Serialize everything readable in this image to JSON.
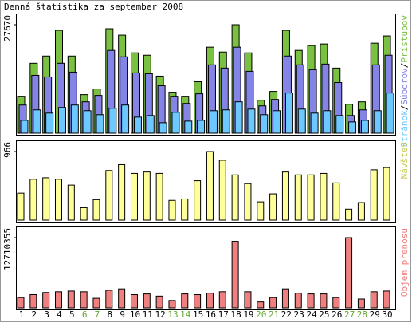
{
  "chart_data": [
    {
      "type": "bar",
      "title": "Denná štatistika za september 2008",
      "ylim": [
        0,
        27670
      ],
      "yticks": [
        27670
      ],
      "legend_separator": "/",
      "series": [
        {
          "name": "Prístupov",
          "color": "#7ac142",
          "values": [
            9430,
            17840,
            19680,
            26240,
            19680,
            9840,
            11280,
            26650,
            25010,
            20500,
            19890,
            14560,
            10460,
            9430,
            13120,
            21940,
            20710,
            27670,
            20500,
            8410,
            10660,
            26240,
            21120,
            22350,
            22760,
            16610,
            7380,
            8000,
            22960,
            24810
          ]
        },
        {
          "name": "Súborov",
          "color": "#8484e6",
          "values": [
            7180,
            14760,
            14350,
            17840,
            15580,
            8000,
            9640,
            21120,
            19480,
            15380,
            15170,
            12100,
            9430,
            7590,
            10050,
            17430,
            16610,
            21940,
            15790,
            6970,
            8610,
            19680,
            17430,
            16200,
            17630,
            12920,
            4510,
            5950,
            17430,
            19890
          ]
        },
        {
          "name": "Stránok",
          "color": "#6cc8ff",
          "values": [
            3280,
            5950,
            5130,
            6560,
            7180,
            5740,
            4720,
            6360,
            7180,
            4100,
            4510,
            2670,
            5330,
            3080,
            3280,
            5740,
            5950,
            8000,
            6150,
            4720,
            5740,
            10250,
            6150,
            5130,
            5740,
            4510,
            2870,
            3280,
            5740,
            10250
          ]
        }
      ]
    },
    {
      "type": "bar",
      "ylim": [
        0,
        966
      ],
      "yticks": [
        966
      ],
      "series": [
        {
          "name": "Návštev",
          "color": "#ffff99",
          "values": [
            380,
            575,
            596,
            575,
            493,
            175,
            288,
            699,
            781,
            658,
            678,
            658,
            278,
            298,
            555,
            966,
            843,
            637,
            514,
            257,
            370,
            678,
            637,
            637,
            658,
            524,
            154,
            247,
            709,
            740
          ]
        }
      ]
    },
    {
      "type": "bar",
      "ylim": [
        0,
        12710355
      ],
      "yticks": [
        12710355
      ],
      "categories": [
        "1",
        "2",
        "3",
        "4",
        "5",
        "6",
        "7",
        "8",
        "9",
        "10",
        "11",
        "12",
        "13",
        "14",
        "15",
        "16",
        "17",
        "18",
        "19",
        "20",
        "21",
        "22",
        "23",
        "24",
        "25",
        "26",
        "27",
        "28",
        "29",
        "30"
      ],
      "category_colors": [
        "#000000",
        "#000000",
        "#000000",
        "#000000",
        "#000000",
        "#66a832",
        "#66a832",
        "#000000",
        "#000000",
        "#000000",
        "#000000",
        "#000000",
        "#66a832",
        "#66a832",
        "#000000",
        "#000000",
        "#000000",
        "#000000",
        "#000000",
        "#66a832",
        "#66a832",
        "#000000",
        "#000000",
        "#000000",
        "#000000",
        "#000000",
        "#66a832",
        "#66a832",
        "#000000",
        "#000000"
      ],
      "series": [
        {
          "name": "Objem prenosu",
          "color": "#f08080",
          "values": [
            1854000,
            2383000,
            2780000,
            2913000,
            3045000,
            2913000,
            1721000,
            3178000,
            3442000,
            2383000,
            2516000,
            2118000,
            1324000,
            2516000,
            2383000,
            2648000,
            2913000,
            12048000,
            2913000,
            1059000,
            1854000,
            3442000,
            2648000,
            2516000,
            2516000,
            1854000,
            12710355,
            1589000,
            2913000,
            3045000
          ]
        }
      ]
    }
  ]
}
